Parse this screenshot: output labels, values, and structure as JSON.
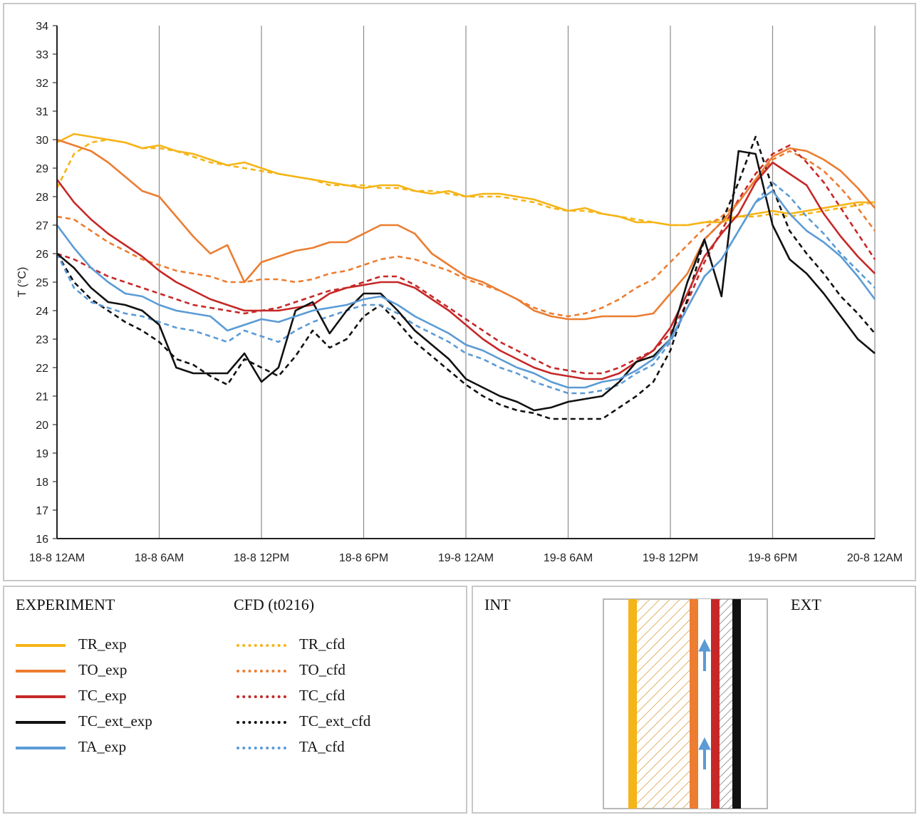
{
  "chart_data": {
    "type": "line",
    "title": "",
    "xlabel": "",
    "ylabel": "T (°C)",
    "ylim": [
      16,
      34
    ],
    "xlim_hours": [
      0,
      48
    ],
    "x_ticks": [
      "18-8 12AM",
      "18-8 6AM",
      "18-8 12PM",
      "18-8 6PM",
      "19-8 12AM",
      "19-8 6AM",
      "19-8 12PM",
      "19-8 6PM",
      "20-8 12AM"
    ],
    "y_ticks": [
      16,
      17,
      18,
      19,
      20,
      21,
      22,
      23,
      24,
      25,
      26,
      27,
      28,
      29,
      30,
      31,
      32,
      33,
      34
    ],
    "x_hours": [
      0,
      1,
      2,
      3,
      4,
      5,
      6,
      7,
      8,
      9,
      10,
      11,
      12,
      13,
      14,
      15,
      16,
      17,
      18,
      19,
      20,
      21,
      22,
      23,
      24,
      25,
      26,
      27,
      28,
      29,
      30,
      31,
      32,
      33,
      34,
      35,
      36,
      37,
      38,
      39,
      40,
      41,
      42,
      43,
      44,
      45,
      46,
      47,
      48
    ],
    "series": [
      {
        "name": "TR_exp",
        "group": "exp",
        "color": "#f5b417",
        "style": "solid",
        "values": [
          29.9,
          30.2,
          30.1,
          30.0,
          29.9,
          29.7,
          29.8,
          29.6,
          29.5,
          29.3,
          29.1,
          29.2,
          29.0,
          28.8,
          28.7,
          28.6,
          28.5,
          28.4,
          28.3,
          28.4,
          28.4,
          28.2,
          28.1,
          28.2,
          28.0,
          28.1,
          28.1,
          28.0,
          27.9,
          27.7,
          27.5,
          27.6,
          27.4,
          27.3,
          27.1,
          27.1,
          27.0,
          27.0,
          27.1,
          27.1,
          27.3,
          27.4,
          27.5,
          27.4,
          27.5,
          27.6,
          27.7,
          27.8,
          27.8
        ]
      },
      {
        "name": "TO_exp",
        "group": "exp",
        "color": "#ec7d31",
        "style": "solid",
        "values": [
          30.0,
          29.8,
          29.6,
          29.2,
          28.7,
          28.2,
          28.0,
          27.3,
          26.6,
          26.0,
          26.3,
          25.0,
          25.7,
          25.9,
          26.1,
          26.2,
          26.4,
          26.4,
          26.7,
          27.0,
          27.0,
          26.7,
          26.0,
          25.6,
          25.2,
          25.0,
          24.7,
          24.4,
          24.0,
          23.8,
          23.7,
          23.7,
          23.8,
          23.8,
          23.8,
          23.9,
          24.6,
          25.3,
          26.5,
          27.1,
          27.8,
          28.6,
          29.4,
          29.7,
          29.6,
          29.3,
          28.9,
          28.3,
          27.6
        ]
      },
      {
        "name": "TC_exp",
        "group": "exp",
        "color": "#c62828",
        "style": "solid",
        "values": [
          28.6,
          27.8,
          27.2,
          26.7,
          26.3,
          25.9,
          25.4,
          25.0,
          24.7,
          24.4,
          24.2,
          24.0,
          24.0,
          24.0,
          24.1,
          24.2,
          24.6,
          24.8,
          24.9,
          25.0,
          25.0,
          24.8,
          24.4,
          24.0,
          23.5,
          23.0,
          22.6,
          22.3,
          22.0,
          21.8,
          21.7,
          21.6,
          21.6,
          21.8,
          22.2,
          22.6,
          23.4,
          24.6,
          25.9,
          26.7,
          27.4,
          28.5,
          29.2,
          28.8,
          28.4,
          27.4,
          26.6,
          25.9,
          25.3
        ]
      },
      {
        "name": "TC_ext_exp",
        "group": "exp",
        "color": "#111111",
        "style": "solid",
        "values": [
          26.0,
          25.5,
          24.8,
          24.3,
          24.2,
          24.0,
          23.5,
          22.0,
          21.8,
          21.8,
          21.8,
          22.5,
          21.5,
          22.0,
          24.0,
          24.3,
          23.2,
          24.0,
          24.6,
          24.6,
          24.0,
          23.3,
          22.8,
          22.3,
          21.6,
          21.3,
          21.0,
          20.8,
          20.5,
          20.6,
          20.8,
          20.9,
          21.0,
          21.5,
          22.2,
          22.4,
          23.0,
          25.0,
          26.5,
          24.5,
          29.6,
          29.5,
          27.0,
          25.8,
          25.3,
          24.6,
          23.8,
          23.0,
          22.5
        ]
      },
      {
        "name": "TA_exp",
        "group": "exp",
        "color": "#5b9bd5",
        "style": "solid",
        "values": [
          27.0,
          26.2,
          25.5,
          25.0,
          24.6,
          24.5,
          24.2,
          24.0,
          23.9,
          23.8,
          23.3,
          23.5,
          23.7,
          23.6,
          23.8,
          24.0,
          24.1,
          24.2,
          24.4,
          24.5,
          24.2,
          23.8,
          23.5,
          23.2,
          22.8,
          22.6,
          22.3,
          22.0,
          21.8,
          21.5,
          21.3,
          21.3,
          21.5,
          21.6,
          21.9,
          22.3,
          23.0,
          24.1,
          25.2,
          25.8,
          26.8,
          27.8,
          28.2,
          27.4,
          26.8,
          26.4,
          25.9,
          25.2,
          24.4
        ]
      },
      {
        "name": "TR_cfd",
        "group": "cfd",
        "color": "#f5b417",
        "style": "dashed",
        "values": [
          28.3,
          29.5,
          29.9,
          30.0,
          29.9,
          29.7,
          29.7,
          29.6,
          29.4,
          29.2,
          29.1,
          29.0,
          28.9,
          28.8,
          28.7,
          28.6,
          28.4,
          28.4,
          28.4,
          28.3,
          28.3,
          28.2,
          28.2,
          28.1,
          28.0,
          28.0,
          28.0,
          27.9,
          27.8,
          27.6,
          27.5,
          27.5,
          27.4,
          27.3,
          27.2,
          27.1,
          27.0,
          27.0,
          27.1,
          27.2,
          27.3,
          27.3,
          27.4,
          27.3,
          27.4,
          27.5,
          27.6,
          27.7,
          27.8
        ]
      },
      {
        "name": "TO_cfd",
        "group": "cfd",
        "color": "#ec7d31",
        "style": "dashed",
        "values": [
          27.3,
          27.2,
          26.8,
          26.4,
          26.1,
          25.8,
          25.6,
          25.4,
          25.3,
          25.2,
          25.0,
          25.0,
          25.1,
          25.1,
          25.0,
          25.1,
          25.3,
          25.4,
          25.6,
          25.8,
          25.9,
          25.8,
          25.6,
          25.4,
          25.1,
          24.9,
          24.7,
          24.4,
          24.1,
          23.9,
          23.8,
          23.9,
          24.1,
          24.4,
          24.8,
          25.1,
          25.7,
          26.3,
          26.9,
          27.3,
          27.8,
          28.6,
          29.3,
          29.6,
          29.3,
          28.9,
          28.3,
          27.6,
          26.8
        ]
      },
      {
        "name": "TC_cfd",
        "group": "cfd",
        "color": "#c62828",
        "style": "dashed",
        "values": [
          26.0,
          25.8,
          25.5,
          25.2,
          25.0,
          24.8,
          24.6,
          24.4,
          24.2,
          24.1,
          24.0,
          23.9,
          24.0,
          24.1,
          24.3,
          24.5,
          24.7,
          24.8,
          25.0,
          25.2,
          25.2,
          24.9,
          24.5,
          24.1,
          23.7,
          23.3,
          22.9,
          22.6,
          22.3,
          22.0,
          21.9,
          21.8,
          21.8,
          22.0,
          22.3,
          22.6,
          23.2,
          24.3,
          25.7,
          26.8,
          27.9,
          28.8,
          29.5,
          29.8,
          29.2,
          28.5,
          27.6,
          26.7,
          25.8
        ]
      },
      {
        "name": "TC_ext_cfd",
        "group": "cfd",
        "color": "#111111",
        "style": "dashed",
        "values": [
          26.0,
          25.0,
          24.4,
          24.0,
          23.6,
          23.3,
          22.9,
          22.3,
          22.1,
          21.7,
          21.4,
          22.3,
          22.0,
          21.7,
          22.4,
          23.3,
          22.7,
          23.0,
          23.8,
          24.2,
          23.6,
          22.9,
          22.4,
          21.9,
          21.4,
          21.0,
          20.7,
          20.5,
          20.4,
          20.2,
          20.2,
          20.2,
          20.2,
          20.6,
          21.0,
          21.5,
          22.6,
          24.4,
          26.5,
          27.1,
          28.5,
          30.1,
          28.3,
          26.8,
          26.0,
          25.3,
          24.5,
          23.9,
          23.2
        ]
      },
      {
        "name": "TA_cfd",
        "group": "cfd",
        "color": "#5b9bd5",
        "style": "dashed",
        "values": [
          26.0,
          24.8,
          24.3,
          24.1,
          23.9,
          23.8,
          23.6,
          23.4,
          23.3,
          23.1,
          22.9,
          23.3,
          23.1,
          22.9,
          23.3,
          23.6,
          23.8,
          24.0,
          24.2,
          24.2,
          23.9,
          23.5,
          23.2,
          22.9,
          22.5,
          22.3,
          22.0,
          21.8,
          21.5,
          21.3,
          21.1,
          21.1,
          21.2,
          21.4,
          21.8,
          22.1,
          22.9,
          24.1,
          25.2,
          25.8,
          26.8,
          27.8,
          28.5,
          28.0,
          27.3,
          26.7,
          26.0,
          25.4,
          24.8
        ]
      }
    ]
  },
  "legend": {
    "experiment_heading": "EXPERIMENT",
    "cfd_heading": "CFD (t0216)",
    "exp_items": [
      "TR_exp",
      "TO_exp",
      "TC_exp",
      "TC_ext_exp",
      "TA_exp"
    ],
    "cfd_items": [
      "TR_cfd",
      "TO_cfd",
      "TC_cfd",
      "TC_ext_cfd",
      "TA_cfd"
    ],
    "colors": [
      "#f5b417",
      "#ec7d31",
      "#c62828",
      "#111111",
      "#5b9bd5"
    ]
  },
  "diagram": {
    "int_label": "INT",
    "ext_label": "EXT",
    "layer_colors": {
      "TR": "#f5b417",
      "hatch": "#e8c48a",
      "TO": "#ec7d31",
      "TC": "#c62828",
      "TC_ext": "#111111",
      "air_arrow": "#5b9bd5"
    }
  }
}
